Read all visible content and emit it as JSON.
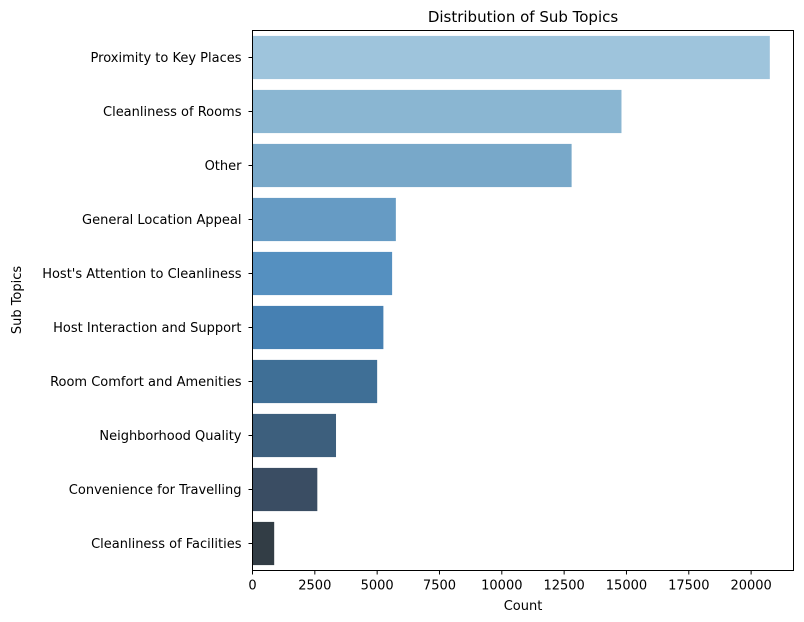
{
  "chart_data": {
    "type": "bar",
    "orientation": "horizontal",
    "title": "Distribution of Sub Topics",
    "xlabel": "Count",
    "ylabel": "Sub Topics",
    "xlim": [
      0,
      21700
    ],
    "xticks": [
      0,
      2500,
      5000,
      7500,
      10000,
      12500,
      15000,
      17500,
      20000
    ],
    "xtick_labels": [
      "0",
      "2500",
      "5000",
      "7500",
      "10000",
      "12500",
      "15000",
      "17500",
      "20000"
    ],
    "categories": [
      "Proximity to Key Places",
      "Cleanliness of Rooms",
      "Other",
      "General Location Appeal",
      "Host's Attention to Cleanliness",
      "Host Interaction and Support",
      "Room Comfort and Amenities",
      "Neighborhood Quality",
      "Convenience for Travelling",
      "Cleanliness of Facilities"
    ],
    "values": [
      20750,
      14800,
      12800,
      5750,
      5600,
      5250,
      5000,
      3350,
      2600,
      870
    ],
    "colors": [
      "#9ec4dc",
      "#8ab6d2",
      "#78a8c9",
      "#669bc4",
      "#5590c0",
      "#4680b2",
      "#3f6f96",
      "#3d5f7d",
      "#3a4d63",
      "#323d45"
    ],
    "grid": false,
    "legend": "none"
  }
}
